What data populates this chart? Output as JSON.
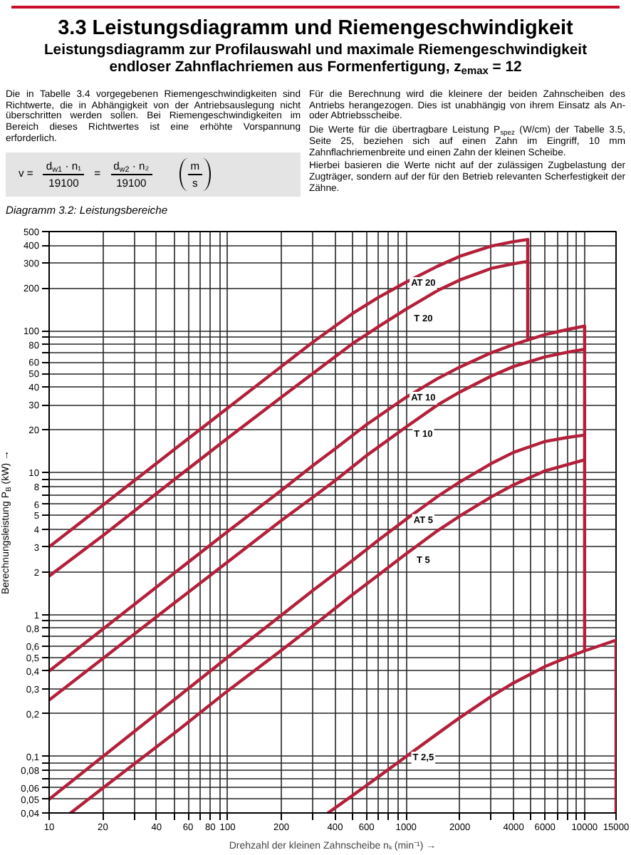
{
  "chart_data": {
    "type": "line",
    "title": "3.3 Leistungsdiagramm und Riemengeschwindigkeit",
    "subtitle": "Leistungsdiagramm zur Profilauswahl und maximale Riemengeschwindigkeit endloser Zahnflachriemen aus Formenfertigung, z$_{emax}$ = 12",
    "xlabel": "Drehzahl der kleinen Zahnscheibe nₖ (min⁻¹) →",
    "ylabel": "Berechnungsleistung P$_{B}$ (kW) →",
    "annotations": [
      "Die in Tabelle 3.4 vorgegebenen Riemengeschwindigkeiten sind Richtwerte, die in Abhängigkeit von der Antriebsauslegung nicht überschritten werden sollen. Bei Riemengeschwindigkeiten im Bereich dieses Richtwertes ist eine erhöhte Vorspannung erforderlich.",
      "v =",
      "d$_{w1}$ · n₁",
      "19100",
      "=",
      "d$_{w2}$ · n₂",
      "19100",
      "m",
      "s",
      "Diagramm 3.2: Leistungsbereiche",
      "Für die Berechnung wird die kleinere der beiden Zahnscheiben des Antriebs herangezogen. Dies ist unabhängig von ihrem Einsatz als An- oder Abtriebsscheibe.",
      "Die Werte für die übertragbare Leistung P$_{spez}$ (W/cm) der Tabelle 3.5, Seite 25, beziehen sich auf einen Zahn im Eingriff, 10 mm Zahnflachriemenbreite und einen Zahn der kleinen Scheibe.",
      "Hierbei basieren die Werte nicht auf der zulässigen Zugbelastung der Zugträger, sondern auf der für den Betrieb relevanten Scherfestigkeit der Zähne."
    ],
    "log": "xy",
    "grid": true,
    "line_style": "solid",
    "xlim": [
      10,
      15000
    ],
    "ylim": [
      0.04,
      500
    ],
    "xticks": [
      10,
      20,
      {
        "value": 30,
        "label": null
      },
      40,
      {
        "value": 50,
        "label": null
      },
      60,
      {
        "value": 70,
        "label": null
      },
      80,
      {
        "value": 90,
        "label": null
      },
      100,
      200,
      {
        "value": 300,
        "label": null
      },
      400,
      {
        "value": 500,
        "label": null
      },
      600,
      {
        "value": 700,
        "label": null
      },
      {
        "value": 800,
        "label": null
      },
      {
        "value": 900,
        "label": null
      },
      1000,
      2000,
      {
        "value": 3000,
        "label": null
      },
      4000,
      {
        "value": 5000,
        "label": null
      },
      6000,
      {
        "value": 7000,
        "label": null
      },
      {
        "value": 8000,
        "label": null
      },
      {
        "value": 9000,
        "label": null
      },
      10000,
      15000
    ],
    "yticks": [
      {
        "value": 0.04,
        "label": "0,04"
      },
      {
        "value": 0.05,
        "label": "0,05"
      },
      {
        "value": 0.06,
        "label": "0,06"
      },
      {
        "value": 0.07,
        "label": null
      },
      {
        "value": 0.08,
        "label": "0,08"
      },
      {
        "value": 0.09,
        "label": null
      },
      {
        "value": 0.1,
        "label": "0,1"
      },
      {
        "value": 0.2,
        "label": "0,2"
      },
      {
        "value": 0.3,
        "label": "0,3"
      },
      {
        "value": 0.4,
        "label": "0,4"
      },
      {
        "value": 0.5,
        "label": "0,5"
      },
      {
        "value": 0.6,
        "label": "0,6"
      },
      {
        "value": 0.7,
        "label": null
      },
      {
        "value": 0.8,
        "label": "0,8"
      },
      {
        "value": 0.9,
        "label": null
      },
      1,
      2,
      3,
      4,
      5,
      6,
      {
        "value": 7,
        "label": null
      },
      8,
      {
        "value": 9,
        "label": null
      },
      10,
      20,
      30,
      40,
      50,
      60,
      {
        "value": 70,
        "label": null
      },
      80,
      {
        "value": 90,
        "label": null
      },
      100,
      200,
      300,
      400,
      500
    ],
    "series": [
      {
        "name": "AT 20",
        "color": "#b3203a",
        "x": [
          10,
          20,
          50,
          100,
          200,
          300,
          500,
          700,
          1000,
          1500,
          2000,
          3000,
          4000,
          4800,
          4800
        ],
        "values": [
          3,
          5.9,
          14.5,
          28.5,
          56,
          83,
          132,
          172,
          220,
          285,
          335,
          395,
          425,
          440,
          86
        ]
      },
      {
        "name": "T 20",
        "color": "#b3203a",
        "x": [
          10,
          20,
          50,
          100,
          200,
          300,
          500,
          700,
          1000,
          1500,
          2000,
          3000,
          4000,
          4800
        ],
        "values": [
          1.87,
          3.6,
          8.9,
          17.5,
          34,
          50,
          81,
          107,
          142,
          192,
          228,
          275,
          297,
          308
        ]
      },
      {
        "name": "AT 10",
        "color": "#b3203a",
        "x": [
          10,
          20,
          50,
          100,
          200,
          300,
          400,
          600,
          1000,
          1500,
          2000,
          3000,
          4000,
          6000,
          8000,
          10000,
          10000
        ],
        "values": [
          0.4,
          0.79,
          1.95,
          3.85,
          7.5,
          11.2,
          14.7,
          21.8,
          34,
          46,
          55.5,
          70,
          80,
          94,
          102,
          108,
          0.555
        ]
      },
      {
        "name": "T 10",
        "color": "#b3203a",
        "x": [
          10,
          20,
          50,
          100,
          200,
          300,
          400,
          600,
          1000,
          1500,
          2000,
          3000,
          4000,
          6000,
          8000,
          10000
        ],
        "values": [
          0.25,
          0.49,
          1.2,
          2.35,
          4.6,
          6.7,
          8.8,
          13.2,
          21,
          30,
          37,
          48,
          56,
          65.5,
          70.5,
          74
        ]
      },
      {
        "name": "AT 5",
        "color": "#b3203a",
        "x": [
          10,
          20,
          50,
          100,
          200,
          300,
          500,
          700,
          1000,
          1500,
          2000,
          3000,
          4000,
          6000,
          8000,
          10000
        ],
        "values": [
          0.05,
          0.1,
          0.25,
          0.5,
          0.99,
          1.48,
          2.4,
          3.35,
          4.7,
          6.8,
          8.6,
          11.6,
          13.9,
          16.6,
          17.7,
          18.4
        ]
      },
      {
        "name": "T 5",
        "color": "#b3203a",
        "x": [
          13.2,
          20,
          50,
          100,
          200,
          300,
          500,
          700,
          1000,
          1500,
          2000,
          3000,
          4000,
          6000,
          8000,
          10000
        ],
        "values": [
          0.04,
          0.06,
          0.145,
          0.29,
          0.56,
          0.83,
          1.38,
          1.9,
          2.68,
          3.9,
          4.95,
          6.75,
          8.2,
          10.3,
          11.4,
          12.3
        ]
      },
      {
        "name": "T 2,5",
        "color": "#b3203a",
        "x": [
          365,
          500,
          700,
          1000,
          1500,
          2000,
          3000,
          4000,
          6000,
          8000,
          10000,
          15000,
          15000
        ],
        "values": [
          0.04,
          0.053,
          0.072,
          0.1,
          0.145,
          0.188,
          0.265,
          0.33,
          0.43,
          0.5,
          0.555,
          0.66,
          0.04
        ]
      }
    ]
  }
}
